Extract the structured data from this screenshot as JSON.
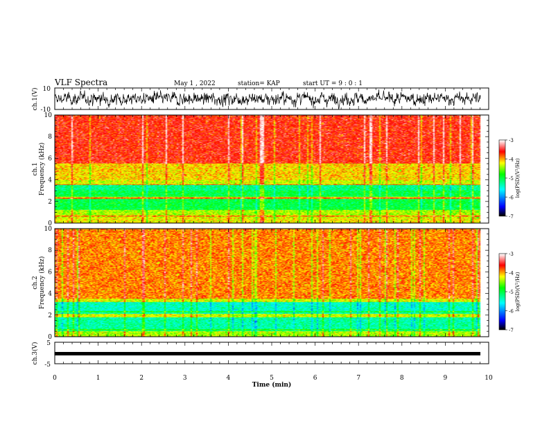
{
  "header": {
    "title": "VLF Spectra",
    "date": "May 1 , 2022",
    "station": "station= KAP",
    "start": "start UT =  9 : 0 : 1"
  },
  "colors": {
    "waveform": "#000000",
    "colormap": [
      "#000000",
      "#0000ff",
      "#00ffff",
      "#00ff00",
      "#ffff00",
      "#ff0000",
      "#ffffff"
    ]
  },
  "chart_data": [
    {
      "type": "line",
      "ylabel": "ch.1(V)",
      "ylim": [
        -10,
        10
      ],
      "yticks": [
        "10",
        "-10"
      ],
      "xlim": [
        0,
        10
      ],
      "description_series": "dense noisy waveform, amplitude roughly -8 to 8 V"
    },
    {
      "type": "heatmap",
      "ylabel": "ch.1\nFrequency (kHz)",
      "ylabel_lines": [
        "ch.1",
        "Frequency (kHz)"
      ],
      "ylim": [
        0,
        10
      ],
      "yticks": [
        "0",
        "2",
        "4",
        "6",
        "8",
        "10"
      ],
      "xlim": [
        0,
        10
      ],
      "colorbar": {
        "label": "log(PSD)(V²/Hz)",
        "ticks": [
          "-3",
          "-4",
          "-5",
          "-6",
          "-7"
        ],
        "range": [
          -7,
          -3
        ]
      },
      "bands": [
        {
          "from": 0,
          "to": 0.5,
          "level": -4.2
        },
        {
          "from": 0.5,
          "to": 1.2,
          "level": -4.4
        },
        {
          "from": 1.2,
          "to": 2.2,
          "level": -5.0
        },
        {
          "from": 2.2,
          "to": 2.4,
          "level": -4.3
        },
        {
          "from": 2.4,
          "to": 3.0,
          "level": -5.0
        },
        {
          "from": 3.0,
          "to": 3.5,
          "level": -5.2
        },
        {
          "from": 3.5,
          "to": 4.0,
          "level": -4.3
        },
        {
          "from": 4.0,
          "to": 5.5,
          "level": -4.1
        },
        {
          "from": 5.5,
          "to": 10,
          "level": -3.6
        }
      ]
    },
    {
      "type": "heatmap",
      "ylabel": "ch.2\nFrequency (kHz)",
      "ylabel_lines": [
        "ch.2",
        "Frequency (kHz)"
      ],
      "ylim": [
        0,
        10
      ],
      "yticks": [
        "0",
        "2",
        "4",
        "6",
        "8",
        "10"
      ],
      "xlim": [
        0,
        10
      ],
      "colorbar": {
        "label": "log(PSD)(V²/Hz)",
        "ticks": [
          "-3",
          "-4",
          "-5",
          "-6",
          "-7"
        ],
        "range": [
          -7,
          -3
        ]
      },
      "bands": [
        {
          "from": 0,
          "to": 0.5,
          "level": -4.4
        },
        {
          "from": 0.5,
          "to": 1.8,
          "level": -5.3
        },
        {
          "from": 1.8,
          "to": 2.1,
          "level": -4.3
        },
        {
          "from": 2.1,
          "to": 3.2,
          "level": -5.4
        },
        {
          "from": 3.2,
          "to": 3.6,
          "level": -4.3
        },
        {
          "from": 3.6,
          "to": 10,
          "level": -3.9
        }
      ]
    },
    {
      "type": "line",
      "ylabel": "ch.3(V)",
      "ylim": [
        -5,
        5
      ],
      "yticks": [
        "5",
        "-5"
      ],
      "xlim": [
        0,
        10
      ],
      "xlabel": "Time (min)",
      "xticks": [
        "0",
        "1",
        "2",
        "3",
        "4",
        "5",
        "6",
        "7",
        "8",
        "9",
        "10"
      ],
      "series_level": 0
    }
  ]
}
